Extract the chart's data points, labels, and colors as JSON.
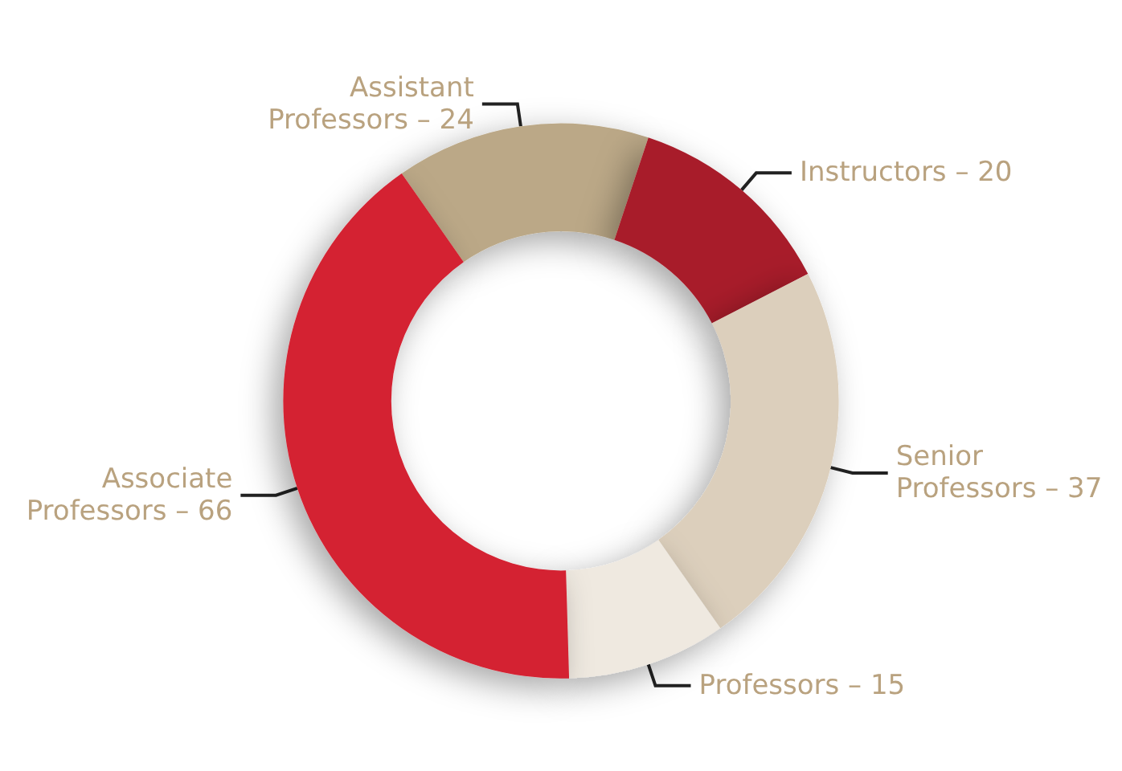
{
  "chart_data": {
    "type": "donut",
    "categories": [
      "Assistant\nProfessors –",
      "Instructors –",
      "Senior\nProfessors –",
      "Professors –",
      "Associate\nProfessors –"
    ],
    "value_labels": [
      "24",
      "20",
      "37",
      "15",
      "66"
    ],
    "values": [
      24,
      20,
      37,
      15,
      66
    ],
    "colors": [
      "#bba887",
      "#a81e2c",
      "#dccfbc",
      "#efe9e0",
      "#d42030"
    ],
    "legend": false
  }
}
